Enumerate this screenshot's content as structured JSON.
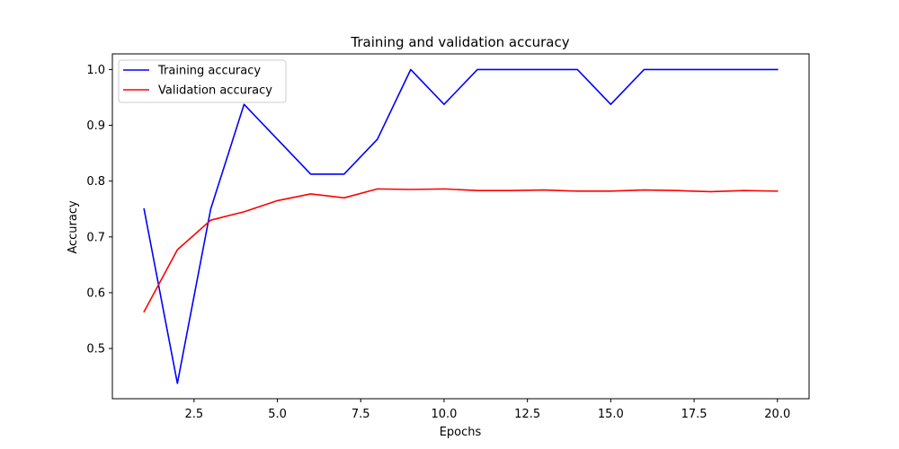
{
  "chart_data": {
    "type": "line",
    "title": "Training and validation accuracy",
    "xlabel": "Epochs",
    "ylabel": "Accuracy",
    "xlim": [
      0.05,
      20.95
    ],
    "ylim": [
      0.41,
      1.028
    ],
    "xticks": [
      2.5,
      5.0,
      7.5,
      10.0,
      12.5,
      15.0,
      17.5,
      20.0
    ],
    "xtick_labels": [
      "2.5",
      "5.0",
      "7.5",
      "10.0",
      "12.5",
      "15.0",
      "17.5",
      "20.0"
    ],
    "yticks": [
      0.5,
      0.6,
      0.7,
      0.8,
      0.9,
      1.0
    ],
    "ytick_labels": [
      "0.5",
      "0.6",
      "0.7",
      "0.8",
      "0.9",
      "1.0"
    ],
    "grid": false,
    "legend_position": "top-left",
    "x": [
      1,
      2,
      3,
      4,
      5,
      6,
      7,
      8,
      9,
      10,
      11,
      12,
      13,
      14,
      15,
      16,
      17,
      18,
      19,
      20
    ],
    "series": [
      {
        "name": "Training accuracy",
        "color": "#0000ff",
        "values": [
          0.75,
          0.4375,
          0.75,
          0.9375,
          0.875,
          0.8125,
          0.8125,
          0.875,
          1.0,
          0.9375,
          1.0,
          1.0,
          1.0,
          1.0,
          0.9375,
          1.0,
          1.0,
          1.0,
          1.0,
          1.0
        ]
      },
      {
        "name": "Validation accuracy",
        "color": "#ff0000",
        "values": [
          0.566,
          0.677,
          0.73,
          0.745,
          0.765,
          0.777,
          0.77,
          0.786,
          0.785,
          0.786,
          0.783,
          0.783,
          0.784,
          0.782,
          0.782,
          0.784,
          0.783,
          0.781,
          0.783,
          0.782
        ]
      }
    ]
  }
}
